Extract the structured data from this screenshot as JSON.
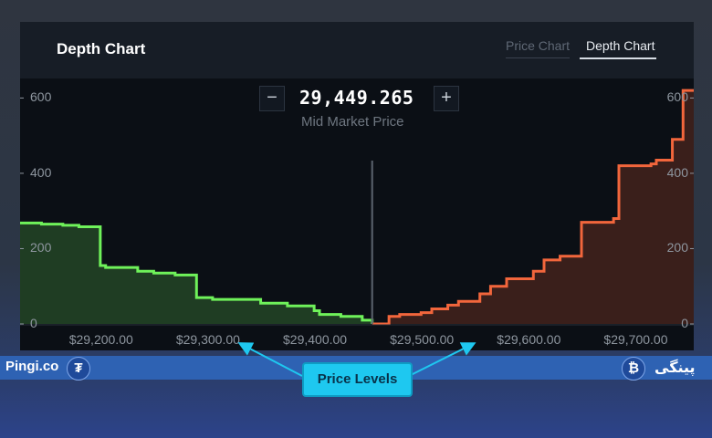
{
  "panel": {
    "title": "Depth Chart",
    "tabs": [
      {
        "label": "Price Chart",
        "active": false
      },
      {
        "label": "Depth Chart",
        "active": true
      }
    ]
  },
  "mid_market": {
    "value": "29,449.265",
    "label": "Mid Market Price",
    "zoom_out_label": "−",
    "zoom_in_label": "+"
  },
  "colors": {
    "bids": "#6ff25a",
    "bids_fill": "#1f3d23",
    "asks": "#f2663c",
    "asks_fill": "#3a1f1b",
    "bottom_bar": "#2e62b3",
    "callout": "#1ec8f0"
  },
  "chart_data": {
    "type": "area",
    "title": "",
    "x_tick_labels": [
      "$29,200.00",
      "$29,300.00",
      "$29,400.00",
      "$29,500.00",
      "$29,600.00",
      "$29,700.00"
    ],
    "y_tick_labels": [
      "600",
      "400",
      "200",
      "0"
    ],
    "xlim": [
      29120,
      29750
    ],
    "ylim": [
      0,
      630
    ],
    "mid_price": 29449.265,
    "series": [
      {
        "side": "bids",
        "x": [
          29120,
          29140,
          29160,
          29175,
          29195,
          29200,
          29230,
          29245,
          29265,
          29285,
          29300,
          29345,
          29370,
          29395,
          29400,
          29420,
          29440,
          29449.265
        ],
        "y": [
          268,
          265,
          262,
          258,
          155,
          150,
          140,
          135,
          130,
          70,
          65,
          55,
          48,
          35,
          25,
          20,
          10,
          0
        ]
      },
      {
        "side": "asks",
        "x": [
          29449.265,
          29465,
          29475,
          29495,
          29505,
          29520,
          29530,
          29550,
          29560,
          29575,
          29600,
          29610,
          29625,
          29645,
          29675,
          29680,
          29710,
          29715,
          29730,
          29740,
          29750
        ],
        "y": [
          0,
          20,
          25,
          30,
          40,
          50,
          60,
          80,
          100,
          120,
          140,
          170,
          180,
          270,
          280,
          420,
          425,
          435,
          490,
          620,
          620
        ]
      }
    ]
  },
  "annotation": {
    "label": "Price Levels"
  },
  "footer": {
    "left_brand": "Pingi.co",
    "left_coin_symbol": "₮",
    "left_coin_name": "tether-icon",
    "right_coin_symbol": "₿",
    "right_coin_name": "bitcoin-icon",
    "right_brand": "پینگی"
  }
}
